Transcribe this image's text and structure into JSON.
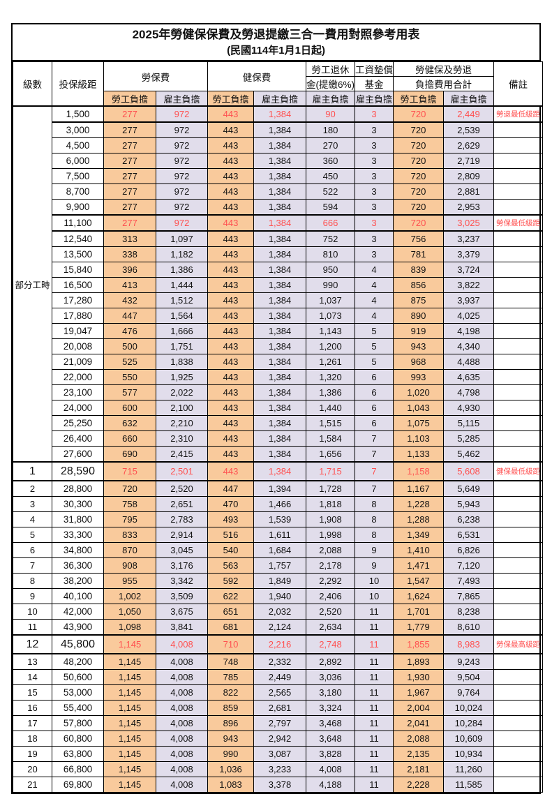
{
  "title": "2025年勞健保保費及勞退提繳三合一費用對照參考用表",
  "subtitle": "(民國114年1月1日起)",
  "columns": {
    "level": "級數",
    "bracket": "投保級距",
    "labor_insurance": "勞保費",
    "health_insurance": "健保費",
    "pension_top": "勞工退休",
    "pension_bottom": "金(提繳6%)",
    "wage_fund_top": "工資墊償",
    "wage_fund_bottom": "基金",
    "total_top": "勞健保及勞退",
    "total_bottom": "負擔費用合計",
    "remark": "備註",
    "employee": "勞工負擔",
    "employer": "雇主負擔"
  },
  "colors": {
    "employee_bg": "#F9CA9C",
    "employer_bg": "#E1DDEB",
    "highlight_text": "#FF5050",
    "border": "#000000"
  },
  "part_time_label": "部分工時",
  "part_time_rowspan": 23,
  "rows": [
    {
      "level": "",
      "bracket": "1,500",
      "values": [
        "277",
        "972",
        "443",
        "1,384",
        "90",
        "3",
        "720",
        "2,449"
      ],
      "remark": "勞退最低級距",
      "highlight": true
    },
    {
      "level": "",
      "bracket": "3,000",
      "values": [
        "277",
        "972",
        "443",
        "1,384",
        "180",
        "3",
        "720",
        "2,539"
      ],
      "remark": ""
    },
    {
      "level": "",
      "bracket": "4,500",
      "values": [
        "277",
        "972",
        "443",
        "1,384",
        "270",
        "3",
        "720",
        "2,629"
      ],
      "remark": ""
    },
    {
      "level": "",
      "bracket": "6,000",
      "values": [
        "277",
        "972",
        "443",
        "1,384",
        "360",
        "3",
        "720",
        "2,719"
      ],
      "remark": ""
    },
    {
      "level": "",
      "bracket": "7,500",
      "values": [
        "277",
        "972",
        "443",
        "1,384",
        "450",
        "3",
        "720",
        "2,809"
      ],
      "remark": ""
    },
    {
      "level": "",
      "bracket": "8,700",
      "values": [
        "277",
        "972",
        "443",
        "1,384",
        "522",
        "3",
        "720",
        "2,881"
      ],
      "remark": ""
    },
    {
      "level": "",
      "bracket": "9,900",
      "values": [
        "277",
        "972",
        "443",
        "1,384",
        "594",
        "3",
        "720",
        "2,953"
      ],
      "remark": ""
    },
    {
      "level": "",
      "bracket": "11,100",
      "values": [
        "277",
        "972",
        "443",
        "1,384",
        "666",
        "3",
        "720",
        "3,025"
      ],
      "remark": "勞保最低級距",
      "highlight": true
    },
    {
      "level": "",
      "bracket": "12,540",
      "values": [
        "313",
        "1,097",
        "443",
        "1,384",
        "752",
        "3",
        "756",
        "3,237"
      ],
      "remark": ""
    },
    {
      "level": "",
      "bracket": "13,500",
      "values": [
        "338",
        "1,182",
        "443",
        "1,384",
        "810",
        "3",
        "781",
        "3,379"
      ],
      "remark": ""
    },
    {
      "level": "",
      "bracket": "15,840",
      "values": [
        "396",
        "1,386",
        "443",
        "1,384",
        "950",
        "4",
        "839",
        "3,724"
      ],
      "remark": ""
    },
    {
      "level": "",
      "bracket": "16,500",
      "values": [
        "413",
        "1,444",
        "443",
        "1,384",
        "990",
        "4",
        "856",
        "3,822"
      ],
      "remark": ""
    },
    {
      "level": "",
      "bracket": "17,280",
      "values": [
        "432",
        "1,512",
        "443",
        "1,384",
        "1,037",
        "4",
        "875",
        "3,937"
      ],
      "remark": ""
    },
    {
      "level": "",
      "bracket": "17,880",
      "values": [
        "447",
        "1,564",
        "443",
        "1,384",
        "1,073",
        "4",
        "890",
        "4,025"
      ],
      "remark": ""
    },
    {
      "level": "",
      "bracket": "19,047",
      "values": [
        "476",
        "1,666",
        "443",
        "1,384",
        "1,143",
        "5",
        "919",
        "4,198"
      ],
      "remark": ""
    },
    {
      "level": "",
      "bracket": "20,008",
      "values": [
        "500",
        "1,751",
        "443",
        "1,384",
        "1,200",
        "5",
        "943",
        "4,340"
      ],
      "remark": ""
    },
    {
      "level": "",
      "bracket": "21,009",
      "values": [
        "525",
        "1,838",
        "443",
        "1,384",
        "1,261",
        "5",
        "968",
        "4,488"
      ],
      "remark": ""
    },
    {
      "level": "",
      "bracket": "22,000",
      "values": [
        "550",
        "1,925",
        "443",
        "1,384",
        "1,320",
        "6",
        "993",
        "4,635"
      ],
      "remark": ""
    },
    {
      "level": "",
      "bracket": "23,100",
      "values": [
        "577",
        "2,022",
        "443",
        "1,384",
        "1,386",
        "6",
        "1,020",
        "4,798"
      ],
      "remark": ""
    },
    {
      "level": "",
      "bracket": "24,000",
      "values": [
        "600",
        "2,100",
        "443",
        "1,384",
        "1,440",
        "6",
        "1,043",
        "4,930"
      ],
      "remark": ""
    },
    {
      "level": "",
      "bracket": "25,250",
      "values": [
        "632",
        "2,210",
        "443",
        "1,384",
        "1,515",
        "6",
        "1,075",
        "5,115"
      ],
      "remark": ""
    },
    {
      "level": "",
      "bracket": "26,400",
      "values": [
        "660",
        "2,310",
        "443",
        "1,384",
        "1,584",
        "7",
        "1,103",
        "5,285"
      ],
      "remark": ""
    },
    {
      "level": "",
      "bracket": "27,600",
      "values": [
        "690",
        "2,415",
        "443",
        "1,384",
        "1,656",
        "7",
        "1,133",
        "5,462"
      ],
      "remark": ""
    },
    {
      "level": "1",
      "bracket": "28,590",
      "values": [
        "715",
        "2,501",
        "443",
        "1,384",
        "1,715",
        "7",
        "1,158",
        "5,608"
      ],
      "remark": "健保最低級距",
      "highlight": true,
      "big": true
    },
    {
      "level": "2",
      "bracket": "28,800",
      "values": [
        "720",
        "2,520",
        "447",
        "1,394",
        "1,728",
        "7",
        "1,167",
        "5,649"
      ],
      "remark": ""
    },
    {
      "level": "3",
      "bracket": "30,300",
      "values": [
        "758",
        "2,651",
        "470",
        "1,466",
        "1,818",
        "8",
        "1,228",
        "5,943"
      ],
      "remark": ""
    },
    {
      "level": "4",
      "bracket": "31,800",
      "values": [
        "795",
        "2,783",
        "493",
        "1,539",
        "1,908",
        "8",
        "1,288",
        "6,238"
      ],
      "remark": ""
    },
    {
      "level": "5",
      "bracket": "33,300",
      "values": [
        "833",
        "2,914",
        "516",
        "1,611",
        "1,998",
        "8",
        "1,349",
        "6,531"
      ],
      "remark": ""
    },
    {
      "level": "6",
      "bracket": "34,800",
      "values": [
        "870",
        "3,045",
        "540",
        "1,684",
        "2,088",
        "9",
        "1,410",
        "6,826"
      ],
      "remark": ""
    },
    {
      "level": "7",
      "bracket": "36,300",
      "values": [
        "908",
        "3,176",
        "563",
        "1,757",
        "2,178",
        "9",
        "1,471",
        "7,120"
      ],
      "remark": ""
    },
    {
      "level": "8",
      "bracket": "38,200",
      "values": [
        "955",
        "3,342",
        "592",
        "1,849",
        "2,292",
        "10",
        "1,547",
        "7,493"
      ],
      "remark": ""
    },
    {
      "level": "9",
      "bracket": "40,100",
      "values": [
        "1,002",
        "3,509",
        "622",
        "1,940",
        "2,406",
        "10",
        "1,624",
        "7,865"
      ],
      "remark": ""
    },
    {
      "level": "10",
      "bracket": "42,000",
      "values": [
        "1,050",
        "3,675",
        "651",
        "2,032",
        "2,520",
        "11",
        "1,701",
        "8,238"
      ],
      "remark": ""
    },
    {
      "level": "11",
      "bracket": "43,900",
      "values": [
        "1,098",
        "3,841",
        "681",
        "2,124",
        "2,634",
        "11",
        "1,779",
        "8,610"
      ],
      "remark": ""
    },
    {
      "level": "12",
      "bracket": "45,800",
      "values": [
        "1,145",
        "4,008",
        "710",
        "2,216",
        "2,748",
        "11",
        "1,855",
        "8,983"
      ],
      "remark": "勞保最高級距",
      "highlight": true,
      "big": true
    },
    {
      "level": "13",
      "bracket": "48,200",
      "values": [
        "1,145",
        "4,008",
        "748",
        "2,332",
        "2,892",
        "11",
        "1,893",
        "9,243"
      ],
      "remark": ""
    },
    {
      "level": "14",
      "bracket": "50,600",
      "values": [
        "1,145",
        "4,008",
        "785",
        "2,449",
        "3,036",
        "11",
        "1,930",
        "9,504"
      ],
      "remark": ""
    },
    {
      "level": "15",
      "bracket": "53,000",
      "values": [
        "1,145",
        "4,008",
        "822",
        "2,565",
        "3,180",
        "11",
        "1,967",
        "9,764"
      ],
      "remark": ""
    },
    {
      "level": "16",
      "bracket": "55,400",
      "values": [
        "1,145",
        "4,008",
        "859",
        "2,681",
        "3,324",
        "11",
        "2,004",
        "10,024"
      ],
      "remark": ""
    },
    {
      "level": "17",
      "bracket": "57,800",
      "values": [
        "1,145",
        "4,008",
        "896",
        "2,797",
        "3,468",
        "11",
        "2,041",
        "10,284"
      ],
      "remark": ""
    },
    {
      "level": "18",
      "bracket": "60,800",
      "values": [
        "1,145",
        "4,008",
        "943",
        "2,942",
        "3,648",
        "11",
        "2,088",
        "10,609"
      ],
      "remark": ""
    },
    {
      "level": "19",
      "bracket": "63,800",
      "values": [
        "1,145",
        "4,008",
        "990",
        "3,087",
        "3,828",
        "11",
        "2,135",
        "10,934"
      ],
      "remark": ""
    },
    {
      "level": "20",
      "bracket": "66,800",
      "values": [
        "1,145",
        "4,008",
        "1,036",
        "3,233",
        "4,008",
        "11",
        "2,181",
        "11,260"
      ],
      "remark": ""
    },
    {
      "level": "21",
      "bracket": "69,800",
      "values": [
        "1,145",
        "4,008",
        "1,083",
        "3,378",
        "4,188",
        "11",
        "2,228",
        "11,585"
      ],
      "remark": ""
    }
  ]
}
